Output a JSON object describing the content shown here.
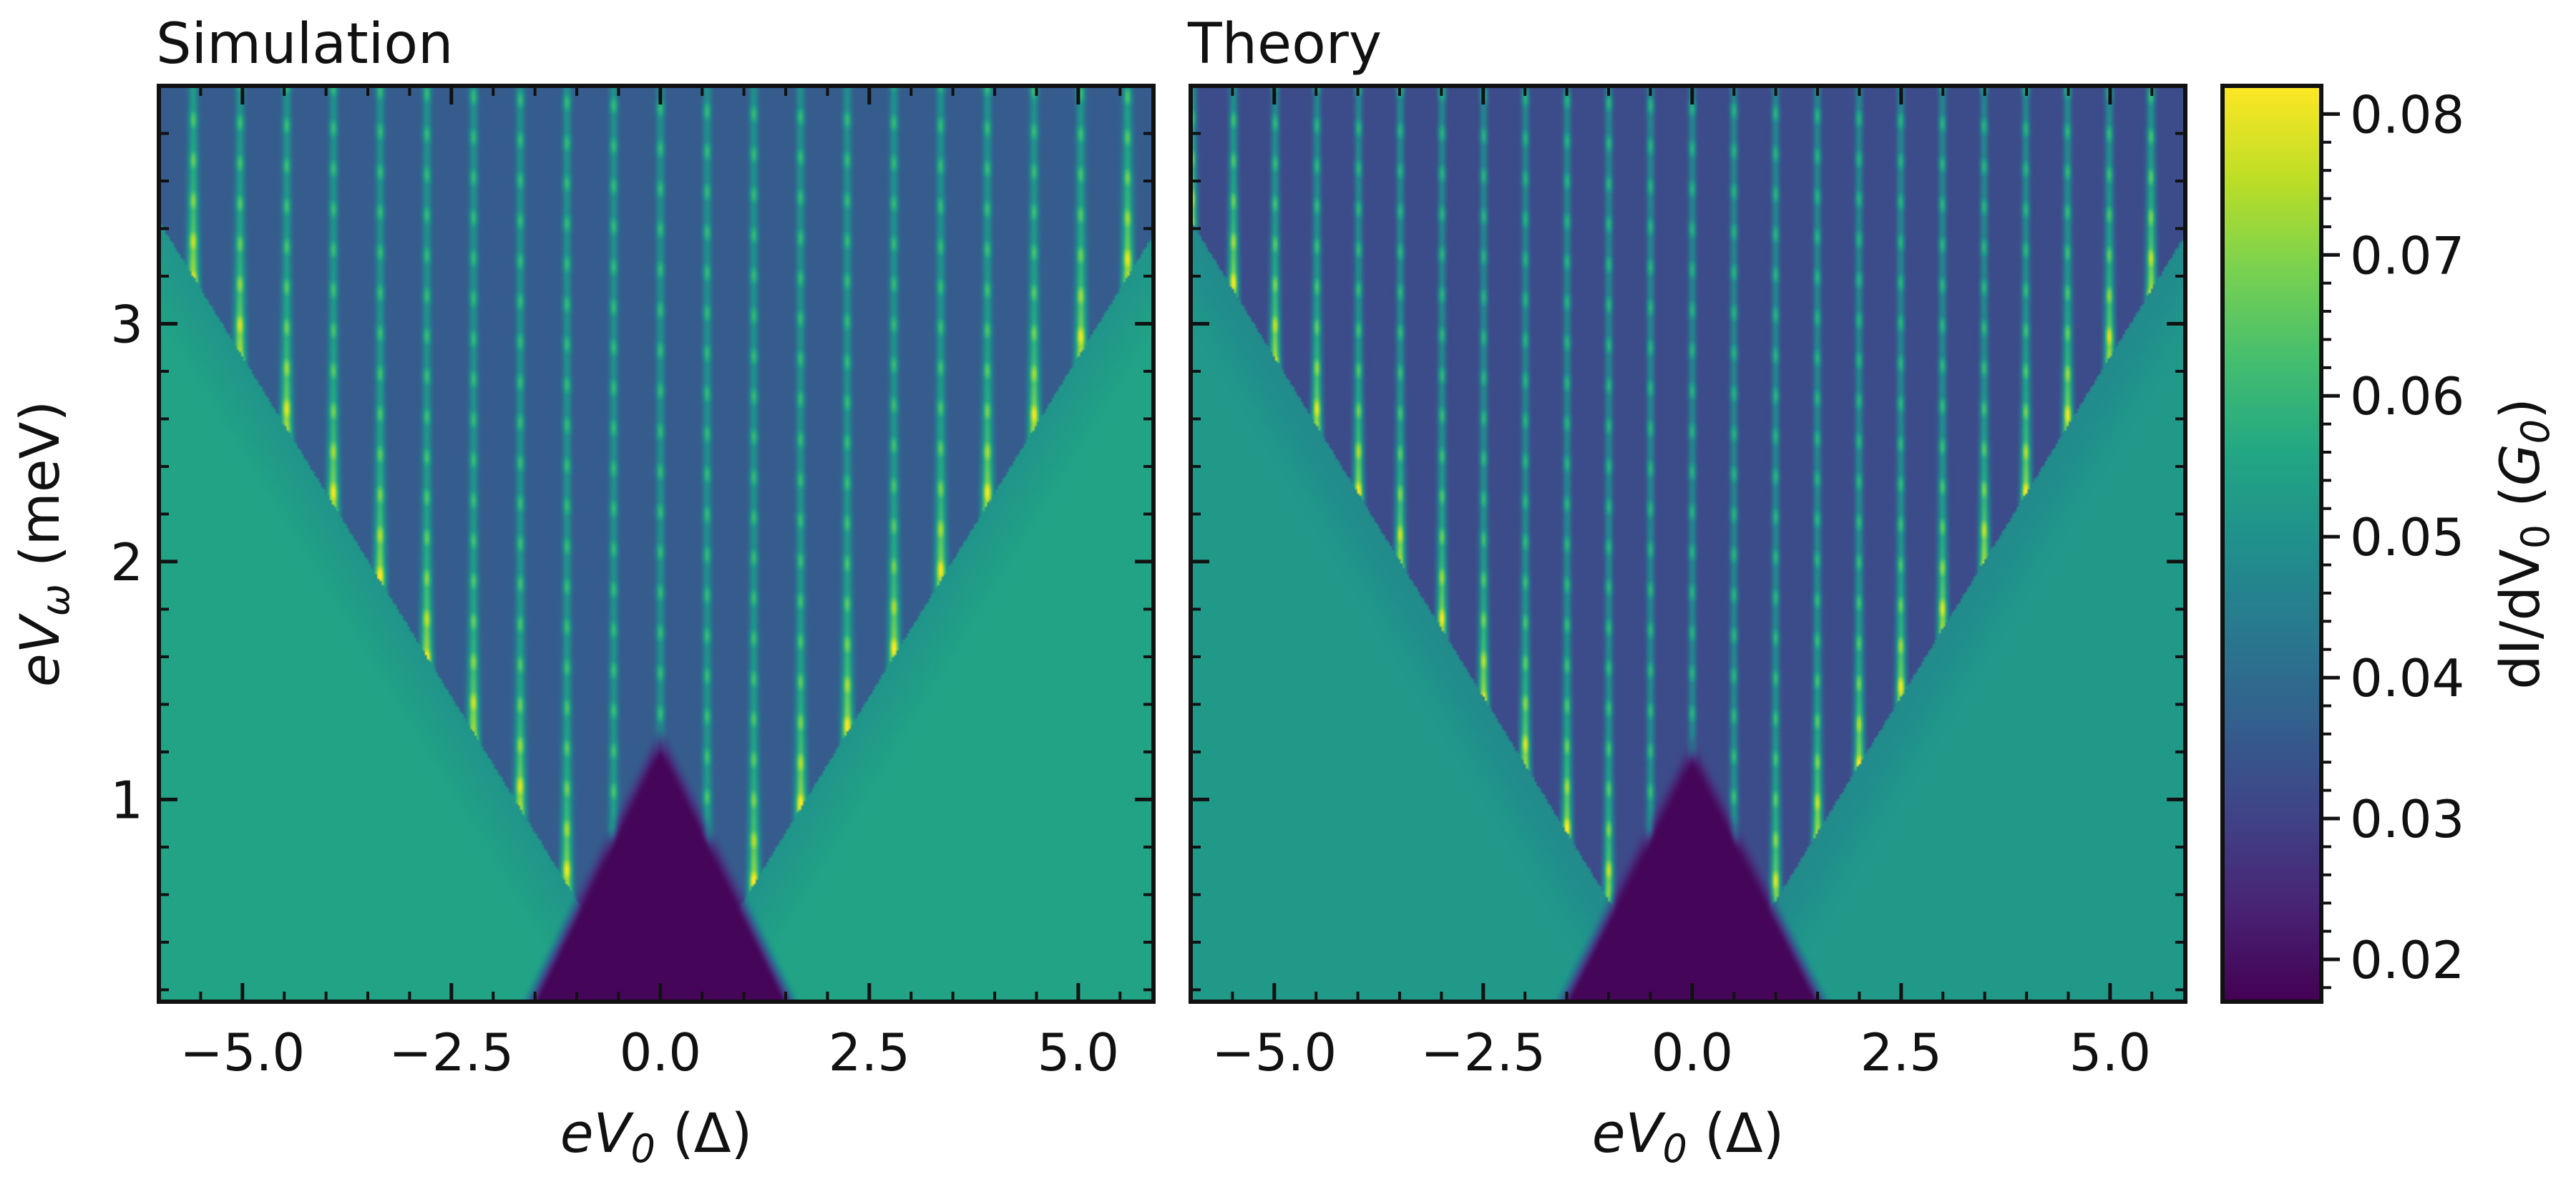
{
  "colors": {
    "colormap": "viridis",
    "axes": "#111111",
    "background": "#ffffff"
  },
  "colorbar": {
    "label": "dI/dV",
    "label_sub": "0",
    "label_unit_open": " (",
    "label_unit": "G",
    "label_unit_sub": "0",
    "label_unit_close": ")",
    "range": [
      0.017,
      0.082
    ],
    "ticks": [
      0.02,
      0.03,
      0.04,
      0.05,
      0.06,
      0.07,
      0.08
    ],
    "tick_labels": [
      "0.02",
      "0.03",
      "0.04",
      "0.05",
      "0.06",
      "0.07",
      "0.08"
    ]
  },
  "chart_data": [
    {
      "type": "heatmap",
      "title": "Simulation",
      "xlabel": "eV",
      "xlabel_sub": "0",
      "xlabel_unit": " (Δ)",
      "ylabel": "eV",
      "ylabel_sub": "ω",
      "ylabel_unit": " (meV)",
      "xlim": [
        -6.0,
        5.9
      ],
      "ylim": [
        0.15,
        4.0
      ],
      "x_ticks": [
        -5.0,
        -2.5,
        0.0,
        2.5,
        5.0
      ],
      "x_tick_labels": [
        "−5.0",
        "−2.5",
        "0.0",
        "2.5",
        "5.0"
      ],
      "y_ticks": [
        1,
        2,
        3
      ],
      "y_tick_labels": [
        "1",
        "2",
        "3"
      ],
      "value_range": [
        0.017,
        0.082
      ],
      "pattern": {
        "background": 0.055,
        "fan_center_x": 0.0,
        "fan_slope": 1.75,
        "gap_half_width": 1.9,
        "gap_top": 1.35,
        "gap_value": 0.018,
        "interior_value": 0.036,
        "peak_value": 0.082,
        "peak_spacing_x": 0.56,
        "peak_spacing_y": 0.17
      }
    },
    {
      "type": "heatmap",
      "title": "Theory",
      "xlabel": "eV",
      "xlabel_sub": "0",
      "xlabel_unit": " (Δ)",
      "ylabel": "",
      "xlim": [
        -6.0,
        5.9
      ],
      "ylim": [
        0.15,
        4.0
      ],
      "x_ticks": [
        -5.0,
        -2.5,
        0.0,
        2.5,
        5.0
      ],
      "x_tick_labels": [
        "−5.0",
        "−2.5",
        "0.0",
        "2.5",
        "5.0"
      ],
      "y_ticks": [
        1,
        2,
        3
      ],
      "y_tick_labels": [],
      "value_range": [
        0.017,
        0.082
      ],
      "pattern": {
        "background": 0.052,
        "fan_center_x": 0.0,
        "fan_slope": 1.75,
        "gap_half_width": 1.9,
        "gap_top": 1.3,
        "gap_value": 0.018,
        "interior_value": 0.032,
        "peak_value": 0.082,
        "peak_spacing_x": 0.5,
        "peak_spacing_y": 0.17
      }
    }
  ]
}
